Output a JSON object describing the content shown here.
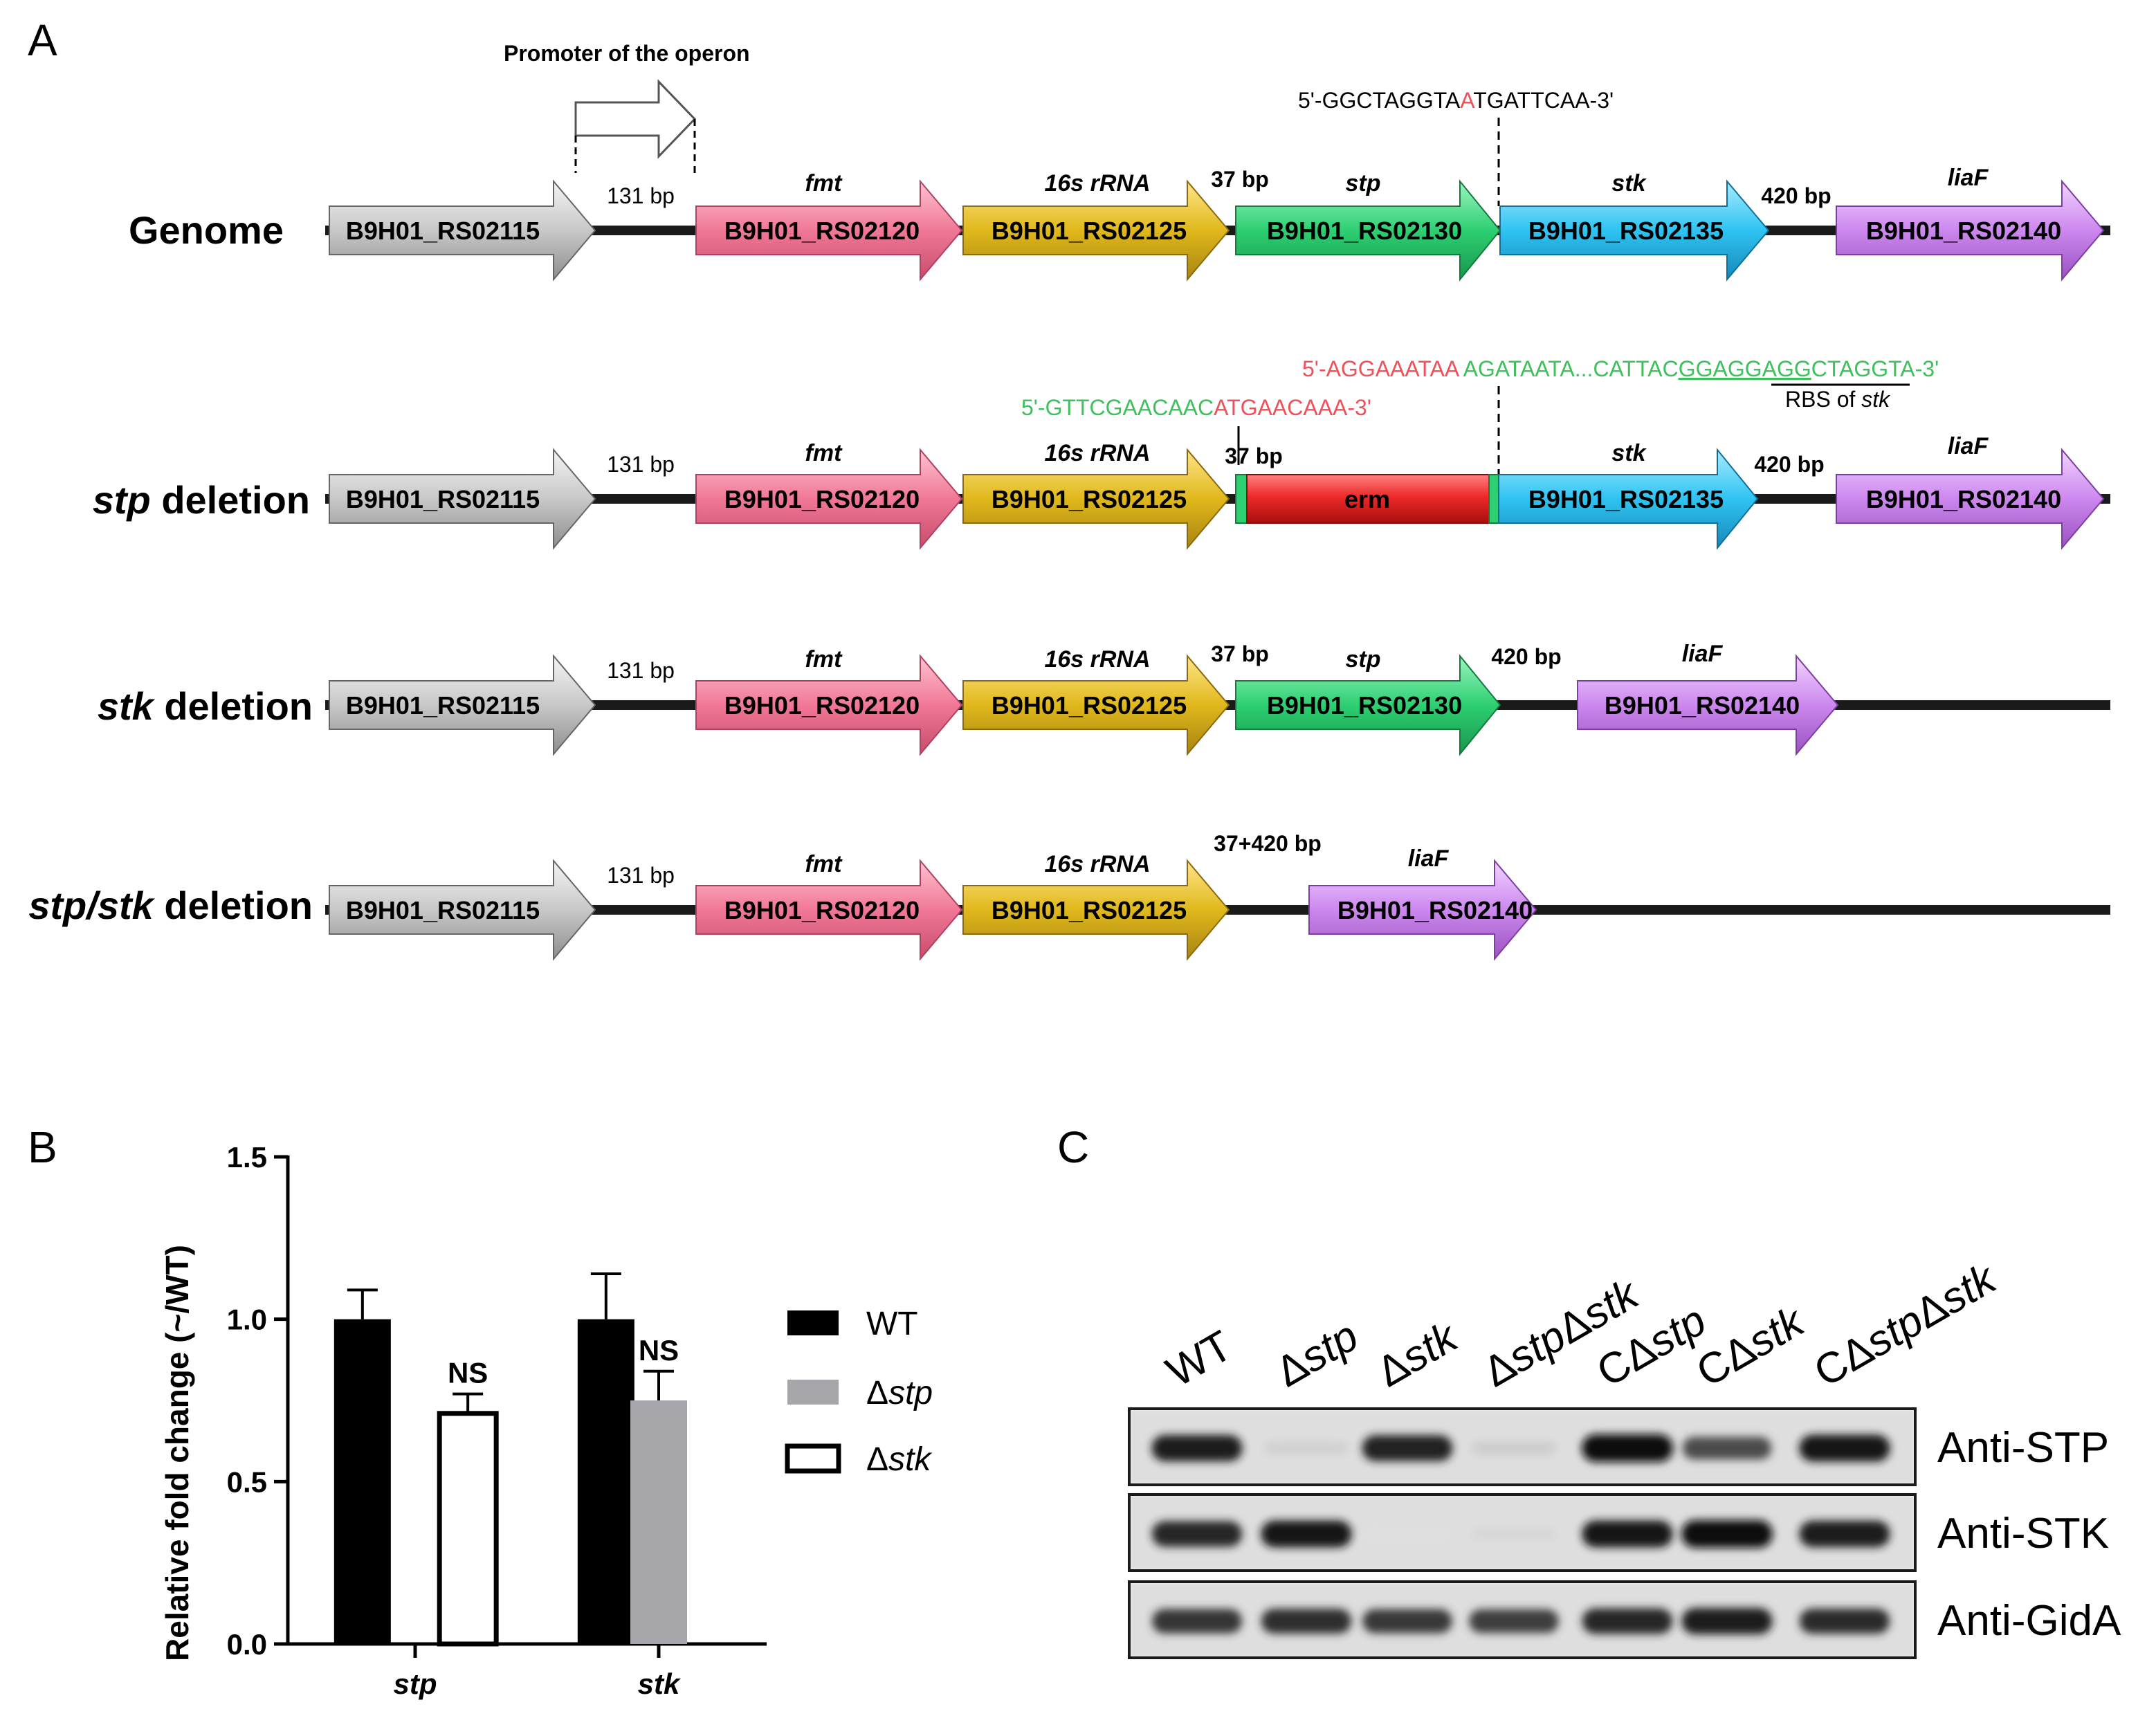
{
  "panel_labels": {
    "a": "A",
    "b": "B",
    "c": "C"
  },
  "panel_a": {
    "promoter_label": "Promoter of the operon",
    "seq_genome": {
      "part1": "5'-GGCTAGGTA",
      "mutated": "A",
      "part2": "TGATTCAA-3'"
    },
    "seq_stp_upper": {
      "red": "5'-AGGAAATAA ",
      "green": "AGATAATA...CATTAC",
      "rbs": "GGAGGAGG",
      "tail": "CTAGGTA-3'"
    },
    "seq_stp_lower": {
      "green": "5'-GTTCGAACAAC",
      "red": "ATGAACAAA-3'"
    },
    "rbs_label": {
      "prefix": "RBS of ",
      "gene": "stk"
    },
    "rows": [
      {
        "label_italic": "",
        "label": "Genome"
      },
      {
        "label_italic": "stp",
        "label": " deletion"
      },
      {
        "label_italic": "stk",
        "label": " deletion"
      },
      {
        "label_italic": "stp/stk",
        "label": " deletion"
      }
    ],
    "loci": {
      "rs02115": "B9H01_RS02115",
      "rs02120": "B9H01_RS02120",
      "rs02125": "B9H01_RS02125",
      "rs02130": "B9H01_RS02130",
      "rs02135": "B9H01_RS02135",
      "rs02140": "B9H01_RS02140",
      "erm": "erm"
    },
    "gene_names": {
      "fmt": "fmt",
      "rrna": "16s rRNA",
      "stp": "stp",
      "stk": "stk",
      "liaF": "liaF"
    },
    "gaps": {
      "g131": "131 bp",
      "g37": "37 bp",
      "g420": "420 bp",
      "g457": "37+420 bp"
    },
    "colors": {
      "rs02115": "#c8c8c8",
      "rs02120": "#f07896",
      "rs02125": "#e0b81c",
      "rs02130": "#2ecf72",
      "rs02135": "#2fc3f2",
      "rs02140": "#cc88ee",
      "erm": "#ee2a2a",
      "seq_red": "#f0505a",
      "seq_green": "#3ec05c"
    }
  },
  "chart_data": {
    "type": "bar",
    "categories": [
      "stp",
      "stk"
    ],
    "series": [
      {
        "name": "WT",
        "values": [
          1.0,
          1.0
        ],
        "errors": [
          0.09,
          0.14
        ],
        "fill": "#000000"
      },
      {
        "name": "Δstp",
        "values": [
          null,
          0.75
        ],
        "errors": [
          null,
          0.09
        ],
        "fill": "#a6a6aa"
      },
      {
        "name": "Δstk",
        "values": [
          0.71,
          null
        ],
        "errors": [
          0.06,
          null
        ],
        "fill": "#ffffff"
      }
    ],
    "zero_values": [
      {
        "category": "stp",
        "series": "Δstp"
      },
      {
        "category": "stk",
        "series": "Δstk"
      }
    ],
    "annotations": [
      {
        "category": "stp",
        "text": "NS"
      },
      {
        "category": "stk",
        "text": "NS"
      }
    ],
    "ylabel": "Relative fold change (~/WT)",
    "ylim": [
      0,
      1.5
    ],
    "yticks": [
      "0.0",
      "0.5",
      "1.0",
      "1.5"
    ],
    "legend": [
      {
        "prefix": "WT",
        "italic": ""
      },
      {
        "prefix": "Δ",
        "italic": "stp"
      },
      {
        "prefix": "Δ",
        "italic": "stk"
      }
    ],
    "legend_position": "right"
  },
  "panel_c": {
    "lanes": [
      {
        "prefix": "WT",
        "it1": "",
        "mid": "",
        "it2": ""
      },
      {
        "prefix": "Δ",
        "it1": "stp",
        "mid": "",
        "it2": ""
      },
      {
        "prefix": "Δ",
        "it1": "stk",
        "mid": "",
        "it2": ""
      },
      {
        "prefix": "Δ",
        "it1": "stp",
        "mid": "Δ",
        "it2": "stk"
      },
      {
        "prefix": "CΔ",
        "it1": "stp",
        "mid": "",
        "it2": ""
      },
      {
        "prefix": "CΔ",
        "it1": "stk",
        "mid": "",
        "it2": ""
      },
      {
        "prefix": "CΔ",
        "it1": "stp",
        "mid": "Δ",
        "it2": "stk"
      }
    ],
    "blots": [
      {
        "antibody": "Anti-STP",
        "intensity": [
          0.92,
          0.12,
          0.9,
          0.14,
          1.0,
          0.72,
          0.95
        ]
      },
      {
        "antibody": "Anti-STK",
        "intensity": [
          0.88,
          0.95,
          0.05,
          0.09,
          0.95,
          1.0,
          0.93
        ]
      },
      {
        "antibody": "Anti-GidA",
        "intensity": [
          0.82,
          0.85,
          0.8,
          0.78,
          0.88,
          0.92,
          0.86
        ]
      }
    ]
  }
}
